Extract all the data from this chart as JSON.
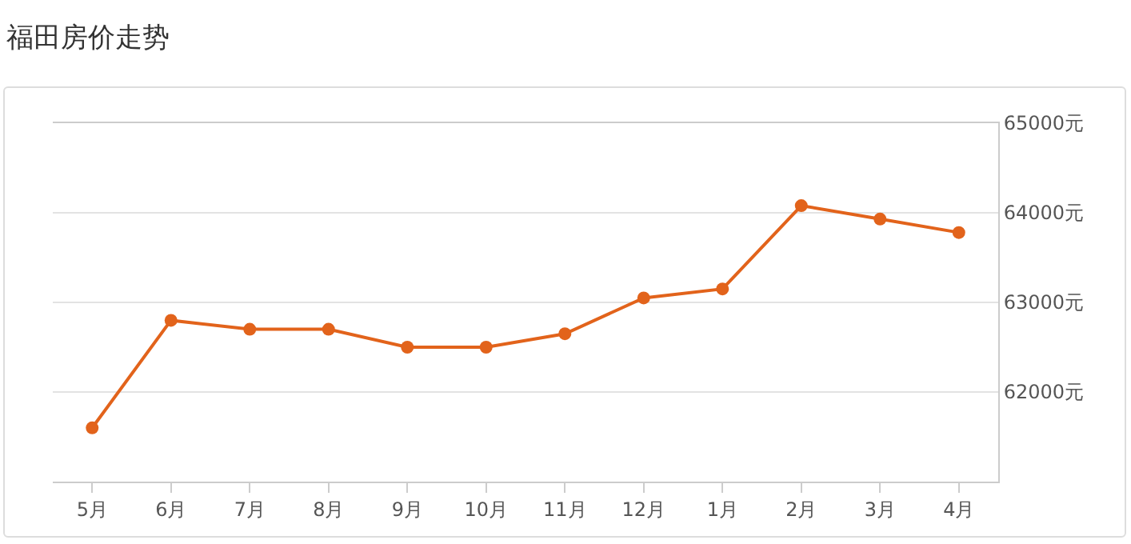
{
  "chart_data": {
    "type": "line",
    "title": "福田房价走势",
    "categories": [
      "5月",
      "6月",
      "7月",
      "8月",
      "9月",
      "10月",
      "11月",
      "12月",
      "1月",
      "2月",
      "3月",
      "4月"
    ],
    "series": [
      {
        "color": "#e2631b",
        "values": [
          61600,
          62800,
          62700,
          62700,
          62500,
          62500,
          62650,
          63050,
          63150,
          64080,
          63930,
          63780
        ]
      }
    ],
    "ylim": [
      61000,
      65000
    ],
    "yticks": [
      {
        "value": 62000,
        "label": "62000元"
      },
      {
        "value": 63000,
        "label": "63000元"
      },
      {
        "value": 64000,
        "label": "64000元"
      },
      {
        "value": 65000,
        "label": "65000元"
      }
    ],
    "grid": "y",
    "marker": "circle",
    "line_style": "solid"
  }
}
